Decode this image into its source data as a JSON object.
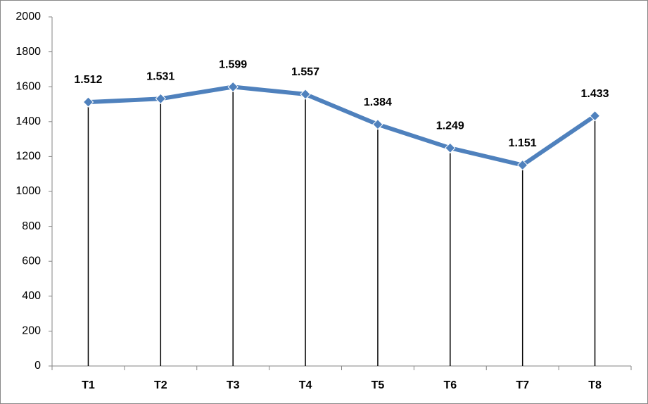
{
  "chart_data": {
    "type": "line",
    "categories": [
      "T1",
      "T2",
      "T3",
      "T4",
      "T5",
      "T6",
      "T7",
      "T8"
    ],
    "values": [
      1512,
      1531,
      1599,
      1557,
      1384,
      1249,
      1151,
      1433
    ],
    "value_labels": [
      "1.512",
      "1.531",
      "1.599",
      "1.557",
      "1.384",
      "1.249",
      "1.151",
      "1.433"
    ],
    "color": "#4f81bd",
    "ylim": [
      0,
      2000
    ],
    "yticks": [
      0,
      200,
      400,
      600,
      800,
      1000,
      1200,
      1400,
      1600,
      1800,
      2000
    ],
    "grid": false,
    "drop_lines": true
  }
}
